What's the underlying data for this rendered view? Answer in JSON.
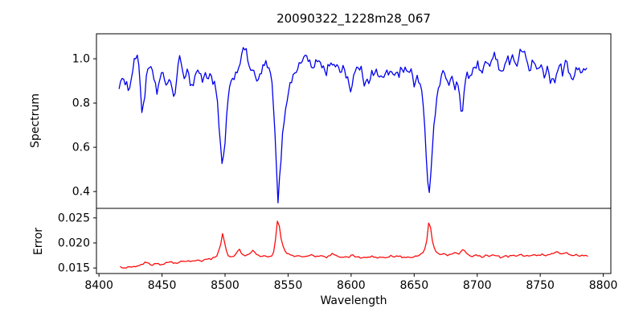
{
  "figure": {
    "title": "20090322_1228m28_067"
  },
  "colors": {
    "spectrum_line": "#0000ee",
    "error_line": "#fb0d0d",
    "frame": "#000000",
    "text": "#000000",
    "background": "#ffffff"
  },
  "chart_data": [
    {
      "type": "line",
      "panel": "top",
      "ylabel": "Spectrum",
      "xlim": [
        8398,
        8806
      ],
      "ylim": [
        0.324,
        1.113
      ],
      "yticks": [
        0.4,
        0.6,
        0.8,
        1.0
      ],
      "ytick_labels": [
        "0.4",
        "0.6",
        "0.8",
        "1.0"
      ],
      "grid": false,
      "legend": "none",
      "color_key": "spectrum_line",
      "sample_step": 1.2,
      "noise_amplitude": 0.017,
      "noise_seed": 1234,
      "x_range_of_data": [
        8416,
        8787
      ],
      "anchors": [
        [
          8416,
          0.88
        ],
        [
          8418,
          0.9
        ],
        [
          8420,
          0.89
        ],
        [
          8422,
          0.91
        ],
        [
          8424,
          0.84
        ],
        [
          8426,
          0.93
        ],
        [
          8428,
          1.0
        ],
        [
          8430,
          1.01
        ],
        [
          8432,
          0.96
        ],
        [
          8434,
          0.76
        ],
        [
          8436,
          0.82
        ],
        [
          8438,
          0.93
        ],
        [
          8440,
          0.96
        ],
        [
          8442,
          0.94
        ],
        [
          8444,
          0.91
        ],
        [
          8446,
          0.85
        ],
        [
          8448,
          0.9
        ],
        [
          8450,
          0.93
        ],
        [
          8452,
          0.91
        ],
        [
          8454,
          0.88
        ],
        [
          8456,
          0.92
        ],
        [
          8458,
          0.85
        ],
        [
          8460,
          0.82
        ],
        [
          8462,
          0.95
        ],
        [
          8464,
          1.0
        ],
        [
          8466,
          0.94
        ],
        [
          8468,
          0.92
        ],
        [
          8470,
          0.96
        ],
        [
          8472,
          0.9
        ],
        [
          8474,
          0.87
        ],
        [
          8476,
          0.92
        ],
        [
          8478,
          0.95
        ],
        [
          8480,
          0.94
        ],
        [
          8482,
          0.9
        ],
        [
          8484,
          0.93
        ],
        [
          8486,
          0.91
        ],
        [
          8488,
          0.94
        ],
        [
          8490,
          0.9
        ],
        [
          8492,
          0.88
        ],
        [
          8494,
          0.8
        ],
        [
          8496,
          0.62
        ],
        [
          8498,
          0.5
        ],
        [
          8500,
          0.63
        ],
        [
          8502,
          0.8
        ],
        [
          8504,
          0.87
        ],
        [
          8506,
          0.91
        ],
        [
          8508,
          0.93
        ],
        [
          8510,
          0.95
        ],
        [
          8512,
          0.99
        ],
        [
          8514,
          1.03
        ],
        [
          8516,
          1.05
        ],
        [
          8518,
          1.0
        ],
        [
          8520,
          0.96
        ],
        [
          8522,
          0.94
        ],
        [
          8524,
          0.92
        ],
        [
          8526,
          0.89
        ],
        [
          8528,
          0.93
        ],
        [
          8530,
          0.96
        ],
        [
          8532,
          0.98
        ],
        [
          8534,
          0.96
        ],
        [
          8536,
          0.93
        ],
        [
          8538,
          0.85
        ],
        [
          8540,
          0.6
        ],
        [
          8542,
          0.35
        ],
        [
          8544,
          0.52
        ],
        [
          8546,
          0.68
        ],
        [
          8548,
          0.78
        ],
        [
          8550,
          0.85
        ],
        [
          8552,
          0.89
        ],
        [
          8554,
          0.92
        ],
        [
          8556,
          0.95
        ],
        [
          8558,
          0.96
        ],
        [
          8560,
          0.98
        ],
        [
          8562,
          1.0
        ],
        [
          8564,
          1.02
        ],
        [
          8566,
          1.0
        ],
        [
          8568,
          0.97
        ],
        [
          8570,
          0.95
        ],
        [
          8572,
          0.98
        ],
        [
          8574,
          1.0
        ],
        [
          8576,
          0.98
        ],
        [
          8578,
          0.96
        ],
        [
          8580,
          0.93
        ],
        [
          8582,
          0.97
        ],
        [
          8584,
          0.99
        ],
        [
          8586,
          0.97
        ],
        [
          8588,
          0.95
        ],
        [
          8590,
          0.97
        ],
        [
          8592,
          0.94
        ],
        [
          8594,
          0.97
        ],
        [
          8596,
          0.93
        ],
        [
          8598,
          0.9
        ],
        [
          8600,
          0.85
        ],
        [
          8602,
          0.92
        ],
        [
          8604,
          0.95
        ],
        [
          8606,
          0.97
        ],
        [
          8608,
          0.95
        ],
        [
          8610,
          0.88
        ],
        [
          8612,
          0.92
        ],
        [
          8614,
          0.9
        ],
        [
          8616,
          0.94
        ],
        [
          8618,
          0.92
        ],
        [
          8620,
          0.95
        ],
        [
          8622,
          0.9
        ],
        [
          8624,
          0.94
        ],
        [
          8626,
          0.91
        ],
        [
          8628,
          0.94
        ],
        [
          8630,
          0.92
        ],
        [
          8632,
          0.95
        ],
        [
          8634,
          0.93
        ],
        [
          8636,
          0.95
        ],
        [
          8638,
          0.93
        ],
        [
          8640,
          0.96
        ],
        [
          8642,
          0.94
        ],
        [
          8644,
          0.96
        ],
        [
          8646,
          0.93
        ],
        [
          8648,
          0.95
        ],
        [
          8650,
          0.87
        ],
        [
          8652,
          0.93
        ],
        [
          8654,
          0.9
        ],
        [
          8656,
          0.85
        ],
        [
          8658,
          0.72
        ],
        [
          8660,
          0.5
        ],
        [
          8662,
          0.4
        ],
        [
          8664,
          0.56
        ],
        [
          8666,
          0.72
        ],
        [
          8668,
          0.83
        ],
        [
          8670,
          0.89
        ],
        [
          8672,
          0.92
        ],
        [
          8674,
          0.95
        ],
        [
          8676,
          0.91
        ],
        [
          8678,
          0.88
        ],
        [
          8680,
          0.92
        ],
        [
          8682,
          0.86
        ],
        [
          8684,
          0.9
        ],
        [
          8686,
          0.82
        ],
        [
          8688,
          0.74
        ],
        [
          8690,
          0.88
        ],
        [
          8692,
          0.94
        ],
        [
          8694,
          0.91
        ],
        [
          8696,
          0.93
        ],
        [
          8698,
          0.96
        ],
        [
          8700,
          0.98
        ],
        [
          8702,
          0.95
        ],
        [
          8704,
          0.92
        ],
        [
          8706,
          0.97
        ],
        [
          8708,
          1.0
        ],
        [
          8710,
          0.96
        ],
        [
          8712,
          1.0
        ],
        [
          8714,
          1.02
        ],
        [
          8716,
          0.98
        ],
        [
          8718,
          0.95
        ],
        [
          8720,
          0.93
        ],
        [
          8722,
          0.99
        ],
        [
          8724,
          1.01
        ],
        [
          8726,
          0.97
        ],
        [
          8728,
          1.02
        ],
        [
          8730,
          0.99
        ],
        [
          8732,
          0.96
        ],
        [
          8734,
          1.03
        ],
        [
          8736,
          1.05
        ],
        [
          8738,
          1.01
        ],
        [
          8740,
          0.97
        ],
        [
          8742,
          0.94
        ],
        [
          8744,
          1.0
        ],
        [
          8746,
          0.97
        ],
        [
          8748,
          0.95
        ],
        [
          8750,
          0.98
        ],
        [
          8752,
          0.94
        ],
        [
          8754,
          0.91
        ],
        [
          8756,
          0.98
        ],
        [
          8758,
          0.88
        ],
        [
          8760,
          0.93
        ],
        [
          8762,
          0.9
        ],
        [
          8764,
          0.95
        ],
        [
          8766,
          0.97
        ],
        [
          8768,
          0.93
        ],
        [
          8770,
          0.99
        ],
        [
          8772,
          0.96
        ],
        [
          8774,
          0.92
        ],
        [
          8776,
          0.89
        ],
        [
          8778,
          0.95
        ],
        [
          8780,
          0.97
        ],
        [
          8782,
          0.94
        ],
        [
          8784,
          0.96
        ],
        [
          8786,
          0.95
        ]
      ]
    },
    {
      "type": "line",
      "panel": "bottom",
      "ylabel": "Error",
      "xlabel": "Wavelength",
      "xlim": [
        8398,
        8806
      ],
      "ylim": [
        0.0139,
        0.0269
      ],
      "yticks": [
        0.015,
        0.02,
        0.025
      ],
      "ytick_labels": [
        "0.015",
        "0.020",
        "0.025"
      ],
      "xticks": [
        8400,
        8450,
        8500,
        8550,
        8600,
        8650,
        8700,
        8750,
        8800
      ],
      "xtick_labels": [
        "8400",
        "8450",
        "8500",
        "8550",
        "8600",
        "8650",
        "8700",
        "8750",
        "8800"
      ],
      "grid": false,
      "legend": "none",
      "color_key": "error_line",
      "sample_step": 1.5,
      "noise_amplitude": 0.00017,
      "noise_seed": 777,
      "x_range_of_data": [
        8417,
        8788
      ],
      "anchors": [
        [
          8417,
          0.0152
        ],
        [
          8421,
          0.0151
        ],
        [
          8425,
          0.0153
        ],
        [
          8429,
          0.0152
        ],
        [
          8433,
          0.0155
        ],
        [
          8437,
          0.0162
        ],
        [
          8441,
          0.0156
        ],
        [
          8445,
          0.0158
        ],
        [
          8449,
          0.0157
        ],
        [
          8453,
          0.016
        ],
        [
          8457,
          0.0162
        ],
        [
          8461,
          0.016
        ],
        [
          8465,
          0.0163
        ],
        [
          8469,
          0.0165
        ],
        [
          8473,
          0.0163
        ],
        [
          8477,
          0.0165
        ],
        [
          8481,
          0.0164
        ],
        [
          8485,
          0.0166
        ],
        [
          8489,
          0.0168
        ],
        [
          8493,
          0.0172
        ],
        [
          8496,
          0.019
        ],
        [
          8498,
          0.0218
        ],
        [
          8500,
          0.0196
        ],
        [
          8502,
          0.0176
        ],
        [
          8505,
          0.0172
        ],
        [
          8508,
          0.0174
        ],
        [
          8511,
          0.019
        ],
        [
          8513,
          0.018
        ],
        [
          8516,
          0.0175
        ],
        [
          8519,
          0.0177
        ],
        [
          8522,
          0.0185
        ],
        [
          8525,
          0.0176
        ],
        [
          8528,
          0.0172
        ],
        [
          8531,
          0.0174
        ],
        [
          8534,
          0.0171
        ],
        [
          8537,
          0.0175
        ],
        [
          8539,
          0.0185
        ],
        [
          8541,
          0.0225
        ],
        [
          8542,
          0.0262
        ],
        [
          8543,
          0.0235
        ],
        [
          8545,
          0.02
        ],
        [
          8547,
          0.0185
        ],
        [
          8550,
          0.0178
        ],
        [
          8553,
          0.0175
        ],
        [
          8556,
          0.0172
        ],
        [
          8559,
          0.0176
        ],
        [
          8562,
          0.0171
        ],
        [
          8565,
          0.0174
        ],
        [
          8568,
          0.0177
        ],
        [
          8571,
          0.0172
        ],
        [
          8574,
          0.0175
        ],
        [
          8577,
          0.0173
        ],
        [
          8580,
          0.0171
        ],
        [
          8583,
          0.0175
        ],
        [
          8586,
          0.0179
        ],
        [
          8589,
          0.0173
        ],
        [
          8592,
          0.0171
        ],
        [
          8595,
          0.0174
        ],
        [
          8598,
          0.0172
        ],
        [
          8601,
          0.0176
        ],
        [
          8604,
          0.0172
        ],
        [
          8607,
          0.017
        ],
        [
          8610,
          0.0173
        ],
        [
          8613,
          0.0171
        ],
        [
          8616,
          0.0174
        ],
        [
          8619,
          0.0172
        ],
        [
          8622,
          0.017
        ],
        [
          8625,
          0.0173
        ],
        [
          8628,
          0.0171
        ],
        [
          8631,
          0.0174
        ],
        [
          8634,
          0.0172
        ],
        [
          8637,
          0.0175
        ],
        [
          8640,
          0.0172
        ],
        [
          8643,
          0.017
        ],
        [
          8646,
          0.0173
        ],
        [
          8649,
          0.0172
        ],
        [
          8652,
          0.0175
        ],
        [
          8655,
          0.0177
        ],
        [
          8658,
          0.0184
        ],
        [
          8660,
          0.0205
        ],
        [
          8662,
          0.0252
        ],
        [
          8664,
          0.021
        ],
        [
          8666,
          0.0188
        ],
        [
          8668,
          0.018
        ],
        [
          8671,
          0.0177
        ],
        [
          8674,
          0.018
        ],
        [
          8677,
          0.0175
        ],
        [
          8680,
          0.0178
        ],
        [
          8683,
          0.0182
        ],
        [
          8686,
          0.0177
        ],
        [
          8689,
          0.0189
        ],
        [
          8692,
          0.0176
        ],
        [
          8695,
          0.0173
        ],
        [
          8698,
          0.0176
        ],
        [
          8701,
          0.0174
        ],
        [
          8704,
          0.0172
        ],
        [
          8707,
          0.0175
        ],
        [
          8710,
          0.0173
        ],
        [
          8713,
          0.0176
        ],
        [
          8716,
          0.0174
        ],
        [
          8719,
          0.0171
        ],
        [
          8722,
          0.0174
        ],
        [
          8725,
          0.0172
        ],
        [
          8728,
          0.0176
        ],
        [
          8731,
          0.0173
        ],
        [
          8734,
          0.0177
        ],
        [
          8737,
          0.0174
        ],
        [
          8740,
          0.0176
        ],
        [
          8743,
          0.0173
        ],
        [
          8746,
          0.0177
        ],
        [
          8749,
          0.0175
        ],
        [
          8752,
          0.0178
        ],
        [
          8755,
          0.0174
        ],
        [
          8758,
          0.0177
        ],
        [
          8761,
          0.018
        ],
        [
          8764,
          0.0183
        ],
        [
          8767,
          0.0178
        ],
        [
          8770,
          0.0182
        ],
        [
          8773,
          0.0176
        ],
        [
          8776,
          0.0174
        ],
        [
          8779,
          0.0177
        ],
        [
          8782,
          0.0174
        ],
        [
          8785,
          0.0176
        ],
        [
          8788,
          0.0175
        ]
      ]
    }
  ]
}
